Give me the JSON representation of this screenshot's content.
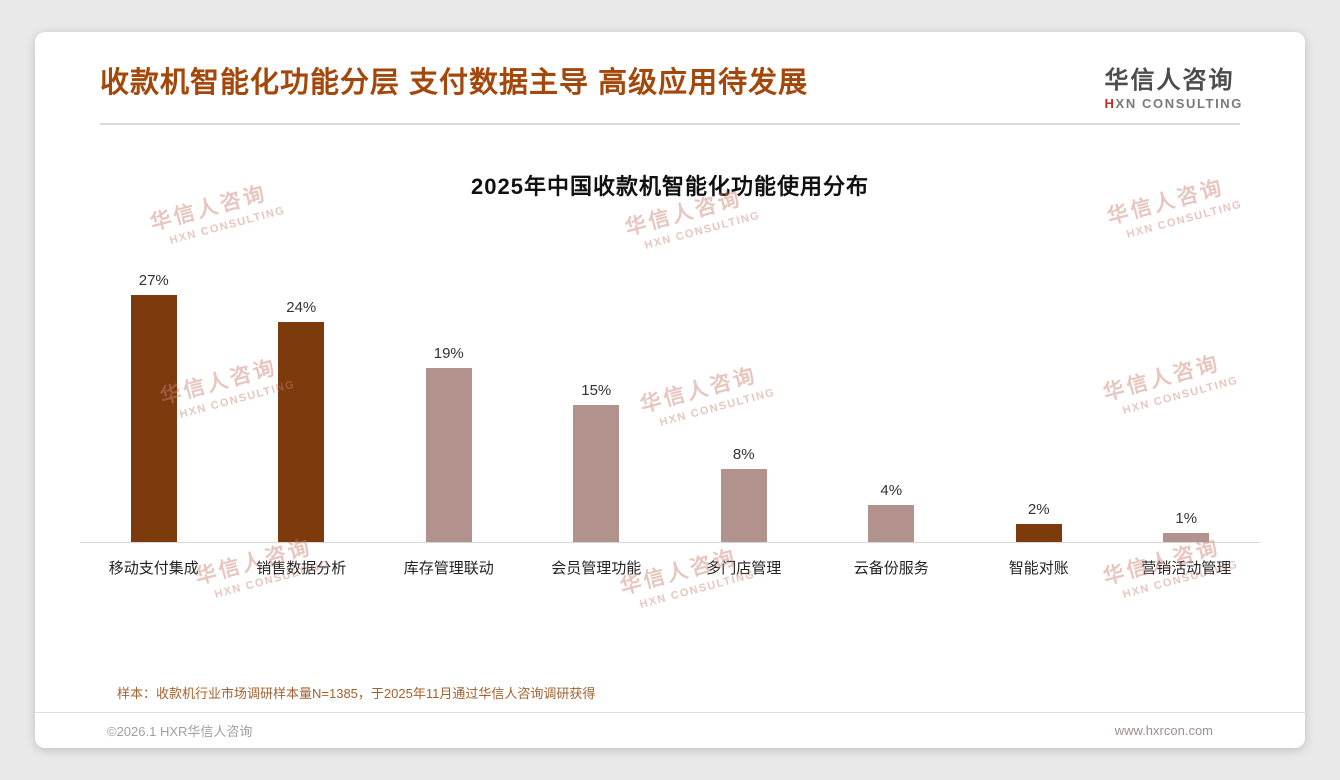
{
  "header": {
    "title": "收款机智能化功能分层 支付数据主导 高级应用待发展"
  },
  "logo": {
    "name": "华信人咨询",
    "tagline_first": "H",
    "tagline_rest": "XN CONSULTING"
  },
  "watermark": {
    "line1": "华信人咨询",
    "line2": "HXN CONSULTING"
  },
  "chart_data": {
    "type": "bar",
    "title": "2025年中国收款机智能化功能使用分布",
    "categories": [
      "移动支付集成",
      "销售数据分析",
      "库存管理联动",
      "会员管理功能",
      "多门店管理",
      "云备份服务",
      "智能对账",
      "营销活动管理"
    ],
    "values": [
      27,
      24,
      19,
      15,
      8,
      4,
      2,
      1
    ],
    "value_labels": [
      "27%",
      "24%",
      "19%",
      "15%",
      "8%",
      "4%",
      "2%",
      "1%"
    ],
    "bar_colors": [
      "#7C3A0D",
      "#7C3A0D",
      "#B2928D",
      "#B2928D",
      "#B2928D",
      "#B2928D",
      "#7C3A0D",
      "#B2928D"
    ],
    "xlabel": "",
    "ylabel": "",
    "ylim": [
      0,
      30
    ],
    "grid": false,
    "legend": false
  },
  "footnote": "样本：收款机行业市场调研样本量N=1385，于2025年11月通过华信人咨询调研获得",
  "footer": {
    "copyright": "©2026.1 HXR华信人咨询",
    "website": "www.hxrcon.com"
  },
  "colors": {
    "accent_dark": "#7C3A0D",
    "accent_light": "#B2928D",
    "title": "#A3470A",
    "watermark": "#CE8A7E"
  }
}
